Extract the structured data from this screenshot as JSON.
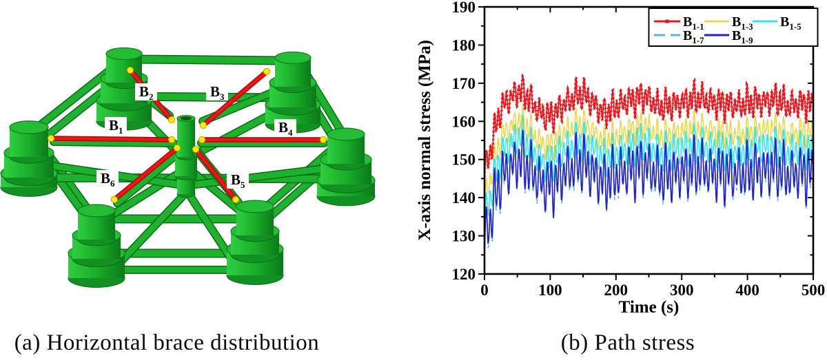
{
  "figure": {
    "panel_a": {
      "caption": "(a) Horizontal brace distribution",
      "braces": [
        {
          "main": "B",
          "sub": "1"
        },
        {
          "main": "B",
          "sub": "2"
        },
        {
          "main": "B",
          "sub": "3"
        },
        {
          "main": "B",
          "sub": "4"
        },
        {
          "main": "B",
          "sub": "5"
        },
        {
          "main": "B",
          "sub": "6"
        }
      ],
      "colors": {
        "structure_green": "#1db12d",
        "structure_green_dark": "#0a6b16",
        "structure_green_light": "#2ecf40",
        "brace_red": "#ef1515",
        "brace_red_dark": "#a50d0d",
        "joint_yellow": "#ffec00",
        "joint_yellow_edge": "#c09a00"
      }
    },
    "panel_b": {
      "caption": "(b) Path stress"
    }
  },
  "chart_data": {
    "type": "line",
    "title": "",
    "xlabel": "Time (s)",
    "ylabel": "X-axis normal stress (MPa)",
    "xlim": [
      0,
      500
    ],
    "ylim": [
      120,
      190
    ],
    "x_ticks": [
      0,
      100,
      200,
      300,
      400,
      500
    ],
    "y_ticks": [
      120,
      130,
      140,
      150,
      160,
      170,
      180,
      190
    ],
    "x_minor_step": 50,
    "y_minor_step": 5,
    "grid": false,
    "legend_position": "top-right",
    "frame_color": "#000000",
    "series": [
      {
        "name": "B1-1",
        "label_main": "B",
        "label_sub": "1-1",
        "color": "#f31017",
        "line": "solid",
        "marker": "square",
        "offset": 0,
        "amp": 5.0,
        "width": 1.6
      },
      {
        "name": "B1-3",
        "label_main": "B",
        "label_sub": "1-3",
        "color": "#e9d94f",
        "line": "solid",
        "marker": null,
        "offset": -7.5,
        "amp": 4.5,
        "width": 1.6
      },
      {
        "name": "B1-5",
        "label_main": "B",
        "label_sub": "1-5",
        "color": "#35e5ee",
        "line": "solid",
        "marker": null,
        "offset": -12,
        "amp": 6.0,
        "width": 1.6
      },
      {
        "name": "B1-7",
        "label_main": "B",
        "label_sub": "1-7",
        "color": "#57b7f2",
        "line": "dashed",
        "marker": null,
        "offset": -19,
        "amp": 8.5,
        "width": 1.6
      },
      {
        "name": "B1-9",
        "label_main": "B",
        "label_sub": "1-9",
        "color": "#2121cf",
        "line": "solid",
        "marker": null,
        "offset": -18,
        "amp": 9.0,
        "width": 1.7
      }
    ],
    "draw_order": [
      1,
      2,
      3,
      4,
      0
    ],
    "envelope_keyframes": [
      [
        0,
        147
      ],
      [
        5,
        150
      ],
      [
        10,
        153
      ],
      [
        15,
        157
      ],
      [
        20,
        160.5
      ],
      [
        25,
        163
      ],
      [
        30,
        164.5
      ],
      [
        40,
        166
      ],
      [
        50,
        168
      ],
      [
        60,
        167.5
      ],
      [
        70,
        165.5
      ],
      [
        80,
        163
      ],
      [
        90,
        161.5
      ],
      [
        100,
        161.4
      ],
      [
        110,
        162.5
      ],
      [
        120,
        164.5
      ],
      [
        130,
        165.5
      ],
      [
        140,
        166.8
      ],
      [
        150,
        167.2
      ],
      [
        160,
        165.5
      ],
      [
        170,
        164
      ],
      [
        180,
        162.2
      ],
      [
        190,
        162.8
      ],
      [
        200,
        164
      ],
      [
        210,
        164.6
      ],
      [
        220,
        165.4
      ],
      [
        230,
        165.8
      ],
      [
        240,
        166.8
      ],
      [
        250,
        166
      ],
      [
        260,
        164.4
      ],
      [
        270,
        163.8
      ],
      [
        280,
        164.2
      ],
      [
        290,
        164.5
      ],
      [
        300,
        164.8
      ],
      [
        310,
        165.3
      ],
      [
        320,
        165.9
      ],
      [
        330,
        166
      ],
      [
        340,
        165.1
      ],
      [
        350,
        164.9
      ],
      [
        360,
        164.8
      ],
      [
        370,
        164.5
      ],
      [
        380,
        164.2
      ],
      [
        390,
        164.3
      ],
      [
        400,
        164.8
      ],
      [
        410,
        165.2
      ],
      [
        420,
        165.3
      ],
      [
        430,
        165.2
      ],
      [
        440,
        165.8
      ],
      [
        450,
        165.4
      ],
      [
        460,
        164
      ],
      [
        470,
        164.4
      ],
      [
        480,
        164.8
      ],
      [
        490,
        164.8
      ],
      [
        500,
        164
      ]
    ],
    "oscillation": {
      "fast_period": 6.2,
      "secondary_period": 13.7,
      "secondary_weight": 0.35,
      "beat_period": 43,
      "beat_depth": 0.28,
      "dt": 0.7
    }
  }
}
